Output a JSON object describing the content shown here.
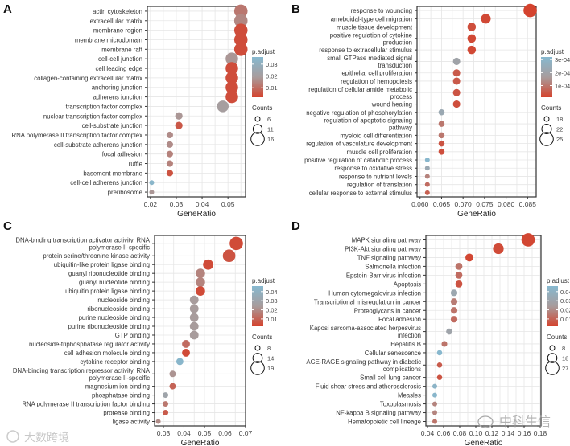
{
  "chart_data": [
    {
      "panel": "A",
      "type": "scatter",
      "xlabel": "GeneRatio",
      "xticks": [
        "0.02",
        "0.03",
        "0.04",
        "0.05"
      ],
      "xtick_values": [
        0.02,
        0.03,
        0.04,
        0.05
      ],
      "color_legend": {
        "title": "p.adjust",
        "ticks": [
          "0.01",
          "0.02",
          "0.03"
        ],
        "tick_values": [
          0.01,
          0.02,
          0.03
        ],
        "range": [
          0.002,
          0.036
        ]
      },
      "size_legend": {
        "title": "Counts",
        "values": [
          6,
          11,
          16
        ],
        "labels": [
          "6",
          "11",
          "16"
        ]
      },
      "rows": [
        {
          "label": "actin cytoskeleton",
          "x": 0.055,
          "padj": 0.012,
          "count": 16
        },
        {
          "label": "extracellular matrix",
          "x": 0.055,
          "padj": 0.015,
          "count": 16
        },
        {
          "label": "membrane region",
          "x": 0.055,
          "padj": 0.004,
          "count": 16
        },
        {
          "label": "membrane microdomain",
          "x": 0.055,
          "padj": 0.004,
          "count": 16
        },
        {
          "label": "membrane raft",
          "x": 0.055,
          "padj": 0.004,
          "count": 16
        },
        {
          "label": "cell-cell junction",
          "x": 0.0515,
          "padj": 0.018,
          "count": 15
        },
        {
          "label": "cell leading edge",
          "x": 0.0515,
          "padj": 0.004,
          "count": 15
        },
        {
          "label": "collagen-containing extracellular matrix",
          "x": 0.0515,
          "padj": 0.004,
          "count": 15
        },
        {
          "label": "anchoring junction",
          "x": 0.0515,
          "padj": 0.004,
          "count": 15
        },
        {
          "label": "adherens junction",
          "x": 0.0515,
          "padj": 0.004,
          "count": 15
        },
        {
          "label": "transcription factor complex",
          "x": 0.048,
          "padj": 0.02,
          "count": 14
        },
        {
          "label": "nuclear transcription factor complex",
          "x": 0.031,
          "padj": 0.018,
          "count": 9
        },
        {
          "label": "cell-substrate junction",
          "x": 0.031,
          "padj": 0.006,
          "count": 9
        },
        {
          "label": "RNA polymerase II transcription factor complex",
          "x": 0.0275,
          "padj": 0.016,
          "count": 8
        },
        {
          "label": "cell-substrate adherens junction",
          "x": 0.0275,
          "padj": 0.016,
          "count": 8
        },
        {
          "label": "focal adhesion",
          "x": 0.0275,
          "padj": 0.014,
          "count": 8
        },
        {
          "label": "ruffle",
          "x": 0.0275,
          "padj": 0.014,
          "count": 8
        },
        {
          "label": "basement membrane",
          "x": 0.0275,
          "padj": 0.005,
          "count": 8
        },
        {
          "label": "cell-cell adherens junction",
          "x": 0.0205,
          "padj": 0.034,
          "count": 6
        },
        {
          "label": "preribosome",
          "x": 0.0205,
          "padj": 0.018,
          "count": 6
        }
      ]
    },
    {
      "panel": "B",
      "type": "scatter",
      "xlabel": "GeneRatio",
      "xticks": [
        "0.060",
        "0.065",
        "0.070",
        "0.075",
        "0.080",
        "0.085"
      ],
      "xtick_values": [
        0.06,
        0.065,
        0.07,
        0.075,
        0.08,
        0.085
      ],
      "color_legend": {
        "title": "p.adjust",
        "ticks": [
          "1e-04",
          "2e-04",
          "3e-04"
        ],
        "tick_values": [
          0.0001,
          0.0002,
          0.0003
        ],
        "range": [
          1e-05,
          0.00032
        ]
      },
      "size_legend": {
        "title": "Counts",
        "values": [
          18,
          22,
          25
        ],
        "labels": [
          "18",
          "22",
          "25"
        ]
      },
      "rows": [
        {
          "label": "response to wounding",
          "x": 0.0856,
          "padj": 1e-05,
          "count": 25
        },
        {
          "label": "ameboidal-type cell migration",
          "x": 0.0753,
          "padj": 2e-05,
          "count": 22
        },
        {
          "label": "muscle tissue development",
          "x": 0.072,
          "padj": 3e-05,
          "count": 21
        },
        {
          "label": "positive regulation of cytokine\nproduction",
          "x": 0.072,
          "padj": 2e-05,
          "count": 21
        },
        {
          "label": "response to extracellular stimulus",
          "x": 0.072,
          "padj": 2e-05,
          "count": 21
        },
        {
          "label": "small GTPase mediated signal\ntransduction",
          "x": 0.0685,
          "padj": 0.0002,
          "count": 20
        },
        {
          "label": "epithelial cell proliferation",
          "x": 0.0685,
          "padj": 5e-05,
          "count": 20
        },
        {
          "label": "regulation of hemopoiesis",
          "x": 0.0685,
          "padj": 5e-05,
          "count": 20
        },
        {
          "label": "regulation of cellular amide metabolic\nprocess",
          "x": 0.0685,
          "padj": 4e-05,
          "count": 20
        },
        {
          "label": "wound healing",
          "x": 0.0685,
          "padj": 3e-05,
          "count": 20
        },
        {
          "label": "negative regulation of phosphorylation",
          "x": 0.065,
          "padj": 0.00023,
          "count": 19
        },
        {
          "label": "regulation of apoptotic signaling\npathway",
          "x": 0.065,
          "padj": 0.0001,
          "count": 19
        },
        {
          "label": "myeloid cell differentiation",
          "x": 0.065,
          "padj": 0.0001,
          "count": 19
        },
        {
          "label": "regulation of vasculature development",
          "x": 0.065,
          "padj": 4e-05,
          "count": 19
        },
        {
          "label": "muscle cell proliferation",
          "x": 0.065,
          "padj": 3e-05,
          "count": 19
        },
        {
          "label": "positive regulation of catabolic process",
          "x": 0.0617,
          "padj": 0.00031,
          "count": 18
        },
        {
          "label": "response to oxidative stress",
          "x": 0.0617,
          "padj": 0.00023,
          "count": 18
        },
        {
          "label": "response to nutrient levels",
          "x": 0.0617,
          "padj": 0.00012,
          "count": 18
        },
        {
          "label": "regulation of translation",
          "x": 0.0617,
          "padj": 8e-05,
          "count": 18
        },
        {
          "label": "cellular response to external stimulus",
          "x": 0.0617,
          "padj": 6e-05,
          "count": 18
        }
      ]
    },
    {
      "panel": "C",
      "type": "scatter",
      "xlabel": "GeneRatio",
      "xticks": [
        "0.03",
        "0.04",
        "0.05",
        "0.06",
        "0.07"
      ],
      "xtick_values": [
        0.03,
        0.04,
        0.05,
        0.06,
        0.07
      ],
      "color_legend": {
        "title": "p.adjust",
        "ticks": [
          "0.01",
          "0.02",
          "0.03",
          "0.04"
        ],
        "tick_values": [
          0.01,
          0.02,
          0.03,
          0.04
        ],
        "range": [
          0.002,
          0.046
        ]
      },
      "size_legend": {
        "title": "Counts",
        "values": [
          8,
          14,
          19
        ],
        "labels": [
          "8",
          "14",
          "19"
        ]
      },
      "rows": [
        {
          "label": "DNA-binding transcription activator activity, RNA\npolymerase II-specific",
          "x": 0.0655,
          "padj": 0.004,
          "count": 19
        },
        {
          "label": "protein serine/threonine kinase activity",
          "x": 0.062,
          "padj": 0.006,
          "count": 18
        },
        {
          "label": "ubiquitin-like protein ligase binding",
          "x": 0.0518,
          "padj": 0.004,
          "count": 15
        },
        {
          "label": "guanyl ribonucleotide binding",
          "x": 0.048,
          "padj": 0.018,
          "count": 14
        },
        {
          "label": "guanyl nucleotide binding",
          "x": 0.048,
          "padj": 0.018,
          "count": 14
        },
        {
          "label": "ubiquitin protein ligase binding",
          "x": 0.048,
          "padj": 0.004,
          "count": 14
        },
        {
          "label": "nucleoside binding",
          "x": 0.045,
          "padj": 0.024,
          "count": 13
        },
        {
          "label": "ribonucleoside binding",
          "x": 0.045,
          "padj": 0.024,
          "count": 13
        },
        {
          "label": "purine nucleoside binding",
          "x": 0.045,
          "padj": 0.024,
          "count": 13
        },
        {
          "label": "purine ribonucleoside binding",
          "x": 0.045,
          "padj": 0.024,
          "count": 13
        },
        {
          "label": "GTP binding",
          "x": 0.045,
          "padj": 0.024,
          "count": 13
        },
        {
          "label": "nucleoside-triphosphatase regulator activity",
          "x": 0.041,
          "padj": 0.012,
          "count": 12
        },
        {
          "label": "cell adhesion molecule binding",
          "x": 0.041,
          "padj": 0.004,
          "count": 12
        },
        {
          "label": "cytokine receptor binding",
          "x": 0.038,
          "padj": 0.044,
          "count": 11
        },
        {
          "label": "DNA-binding transcription repressor activity, RNA\npolymerase II-specific",
          "x": 0.0345,
          "padj": 0.022,
          "count": 10
        },
        {
          "label": "magnesium ion binding",
          "x": 0.0345,
          "padj": 0.01,
          "count": 10
        },
        {
          "label": "phosphatase binding",
          "x": 0.031,
          "padj": 0.03,
          "count": 9
        },
        {
          "label": "RNA polymerase II transcription factor binding",
          "x": 0.031,
          "padj": 0.015,
          "count": 9
        },
        {
          "label": "protease binding",
          "x": 0.031,
          "padj": 0.008,
          "count": 9
        },
        {
          "label": "ligase activity",
          "x": 0.0275,
          "padj": 0.02,
          "count": 8
        }
      ]
    },
    {
      "panel": "D",
      "type": "scatter",
      "xlabel": "GeneRatio",
      "xticks": [
        "0.04",
        "0.06",
        "0.08",
        "0.10",
        "0.12",
        "0.14",
        "0.16",
        "0.18"
      ],
      "xtick_values": [
        0.04,
        0.06,
        0.08,
        0.1,
        0.12,
        0.14,
        0.16,
        0.18
      ],
      "color_legend": {
        "title": "p.adjust",
        "ticks": [
          "0.01",
          "0.02",
          "0.03",
          "0.04"
        ],
        "tick_values": [
          0.01,
          0.02,
          0.03,
          0.04
        ],
        "range": [
          0.002,
          0.046
        ]
      },
      "size_legend": {
        "title": "Counts",
        "values": [
          8,
          18,
          27
        ],
        "labels": [
          "8",
          "18",
          "27"
        ]
      },
      "rows": [
        {
          "label": "MAPK signaling pathway",
          "x": 0.165,
          "padj": 0.003,
          "count": 27
        },
        {
          "label": "PI3K-Akt signaling pathway",
          "x": 0.128,
          "padj": 0.004,
          "count": 21
        },
        {
          "label": "TNF signaling pathway",
          "x": 0.092,
          "padj": 0.003,
          "count": 15
        },
        {
          "label": "Salmonella infection",
          "x": 0.079,
          "padj": 0.014,
          "count": 13
        },
        {
          "label": "Epstein-Barr virus infection",
          "x": 0.079,
          "padj": 0.012,
          "count": 13
        },
        {
          "label": "Apoptosis",
          "x": 0.079,
          "padj": 0.006,
          "count": 13
        },
        {
          "label": "Human cytomegalovirus infection",
          "x": 0.073,
          "padj": 0.032,
          "count": 12
        },
        {
          "label": "Transcriptional misregulation in cancer",
          "x": 0.073,
          "padj": 0.016,
          "count": 12
        },
        {
          "label": "Proteoglycans in cancer",
          "x": 0.073,
          "padj": 0.014,
          "count": 12
        },
        {
          "label": "Focal adhesion",
          "x": 0.073,
          "padj": 0.012,
          "count": 12
        },
        {
          "label": "Kaposi sarcoma-associated herpesvirus\ninfection",
          "x": 0.067,
          "padj": 0.03,
          "count": 11
        },
        {
          "label": "Hepatitis B",
          "x": 0.061,
          "padj": 0.014,
          "count": 10
        },
        {
          "label": "Cellular senescence",
          "x": 0.055,
          "padj": 0.045,
          "count": 9
        },
        {
          "label": "AGE-RAGE signaling pathway in diabetic\ncomplications",
          "x": 0.055,
          "padj": 0.008,
          "count": 9
        },
        {
          "label": "Small cell lung cancer",
          "x": 0.055,
          "padj": 0.006,
          "count": 9
        },
        {
          "label": "Fluid shear stress and atherosclerosis",
          "x": 0.049,
          "padj": 0.042,
          "count": 8
        },
        {
          "label": "Measles",
          "x": 0.049,
          "padj": 0.044,
          "count": 8
        },
        {
          "label": "Toxoplasmosis",
          "x": 0.049,
          "padj": 0.018,
          "count": 8
        },
        {
          "label": "NF-kappa B signaling pathway",
          "x": 0.049,
          "padj": 0.018,
          "count": 8
        },
        {
          "label": "Hematopoietic cell lineage",
          "x": 0.049,
          "padj": 0.014,
          "count": 8
        }
      ]
    }
  ],
  "colors": {
    "low": "#d4432e",
    "mid": "#a89c9c",
    "high": "#86b9d0",
    "grid": "#e6e6e6"
  },
  "watermarks": [
    "大数跨境",
    "中科生信"
  ]
}
